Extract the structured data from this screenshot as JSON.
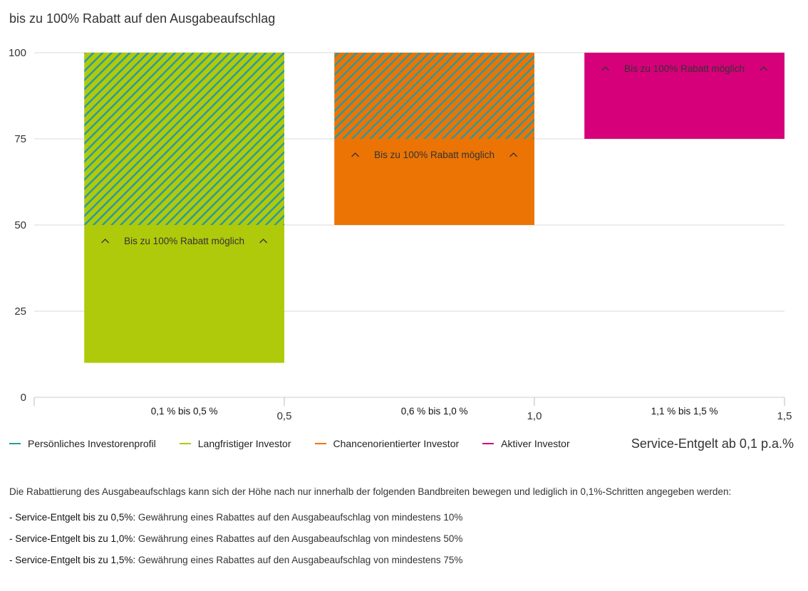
{
  "chart_data": {
    "type": "bar",
    "title": "bis zu 100% Rabatt auf den Ausgabeaufschlag",
    "xlabel": "Service-Entgelt ab 0,1 p.a.%",
    "ylabel": "",
    "ylim": [
      0,
      100
    ],
    "xlim": [
      0,
      1.5
    ],
    "y_ticks": [
      "0",
      "25",
      "50",
      "75",
      "100"
    ],
    "x_ticks": [
      {
        "value": 0.5,
        "label": "0,5"
      },
      {
        "value": 1.0,
        "label": "1,0"
      },
      {
        "value": 1.5,
        "label": "1,5"
      }
    ],
    "grid": true,
    "legend_position": "bottom",
    "bars": [
      {
        "category": "0,1 % bis 0,5 %",
        "x_start": 0.1,
        "x_end": 0.5,
        "low": 10,
        "high": 100,
        "solid_to": 50,
        "color": "#afca0b",
        "hatch": true,
        "annotation": "Bis zu 100% Rabatt möglich"
      },
      {
        "category": "0,6 % bis 1,0 %",
        "x_start": 0.6,
        "x_end": 1.0,
        "low": 50,
        "high": 100,
        "solid_to": 75,
        "color": "#ec7404",
        "hatch": true,
        "annotation": "Bis zu 100% Rabatt möglich"
      },
      {
        "category": "1,1 % bis 1,5 %",
        "x_start": 1.1,
        "x_end": 1.5,
        "low": 75,
        "high": 100,
        "solid_to": 100,
        "color": "#d6007a",
        "hatch": false,
        "annotation": "Bis zu 100% Rabatt möglich"
      }
    ],
    "hatch_color": "#2a9aa0",
    "series": [
      {
        "name": "Persönliches Investorenprofil",
        "color": "#2a9aa0"
      },
      {
        "name": "Langfristiger Investor",
        "color": "#afca0b"
      },
      {
        "name": "Chancenorientierter Investor",
        "color": "#ec7404"
      },
      {
        "name": "Aktiver Investor",
        "color": "#d6007a"
      }
    ]
  },
  "notes": {
    "intro": "Die Rabattierung des Ausgabeaufschlags kann sich der Höhe nach nur innerhalb der folgenden Bandbreiten bewegen und lediglich in 0,1%-Schritten angegeben werden:",
    "items": [
      {
        "bold": "- Service-Entgelt bis zu 0,5%:",
        "text": " Gewährung eines Rabattes auf den Ausgabeaufschlag von mindestens 10%"
      },
      {
        "bold": "- Service-Entgelt bis zu 1,0%:",
        "text": " Gewährung eines Rabattes auf den Ausgabeaufschlag von mindestens 50%"
      },
      {
        "bold": "- Service-Entgelt bis zu 1,5%:",
        "text": " Gewährung eines Rabattes auf den Ausgabeaufschlag von mindestens 75%"
      }
    ]
  }
}
